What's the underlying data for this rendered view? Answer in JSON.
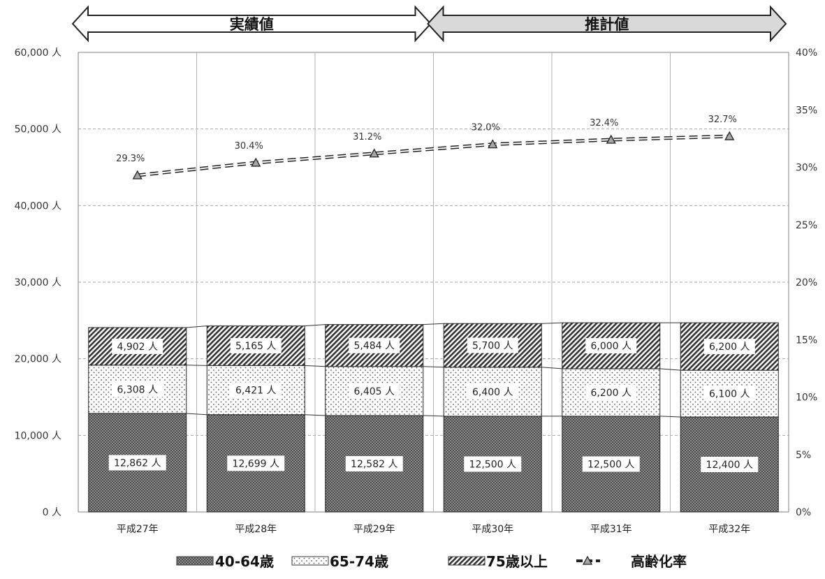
{
  "chart_data": {
    "type": "bar",
    "stacked": true,
    "categories": [
      "平成27年",
      "平成28年",
      "平成29年",
      "平成30年",
      "平成31年",
      "平成32年"
    ],
    "series": [
      {
        "name": "40-64歳",
        "values": [
          12862,
          12699,
          12582,
          12500,
          12500,
          12400
        ],
        "labels": [
          "12,862 人",
          "12,699 人",
          "12,582 人",
          "12,500 人",
          "12,500 人",
          "12,400 人"
        ]
      },
      {
        "name": "65-74歳",
        "values": [
          6308,
          6421,
          6405,
          6400,
          6200,
          6100
        ],
        "labels": [
          "6,308 人",
          "6,421 人",
          "6,405 人",
          "6,400 人",
          "6,200 人",
          "6,100 人"
        ]
      },
      {
        "name": "75歳以上",
        "values": [
          4902,
          5165,
          5484,
          5700,
          6000,
          6200
        ],
        "labels": [
          "4,902 人",
          "5,165 人",
          "5,484 人",
          "5,700 人",
          "6,000 人",
          "6,200 人"
        ]
      }
    ],
    "line_series": {
      "name": "高齢化率",
      "values": [
        29.3,
        30.4,
        31.2,
        32.0,
        32.4,
        32.7
      ],
      "labels": [
        "29.3%",
        "30.4%",
        "31.2%",
        "32.0%",
        "32.4%",
        "32.7%"
      ],
      "axis": "right"
    },
    "y_left": {
      "ylim": [
        0,
        60000
      ],
      "ticks": [
        "0 人",
        "10,000 人",
        "20,000 人",
        "30,000 人",
        "40,000 人",
        "50,000 人",
        "60,000 人"
      ]
    },
    "y_right": {
      "ylim": [
        0,
        40
      ],
      "ticks": [
        "0%",
        "5%",
        "10%",
        "15%",
        "20%",
        "25%",
        "30%",
        "35%",
        "40%"
      ]
    },
    "periods": [
      {
        "label": "実績値",
        "categories": [
          "平成27年",
          "平成28年",
          "平成29年"
        ],
        "fill": "#ffffff"
      },
      {
        "label": "推計値",
        "categories": [
          "平成30年",
          "平成31年",
          "平成32年"
        ],
        "fill": "#d9d9d9"
      }
    ],
    "grid": true,
    "legend_position": "bottom",
    "legend": [
      "40-64歳",
      "65-74歳",
      "75歳以上",
      "高齢化率"
    ]
  }
}
